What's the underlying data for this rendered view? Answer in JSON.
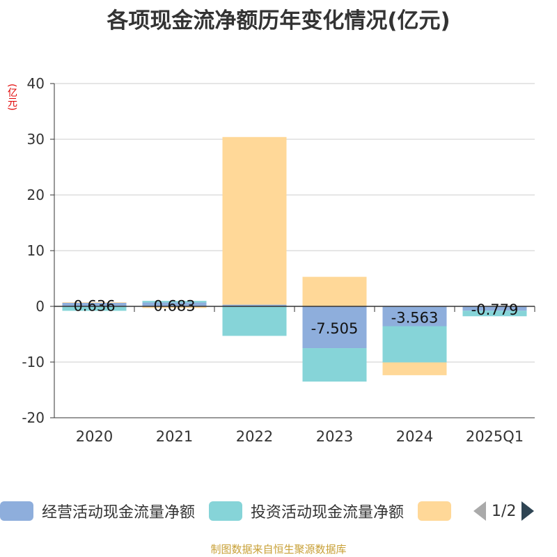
{
  "title": "各项现金流净额历年变化情况(亿元)",
  "unit": "(亿元)",
  "colors": {
    "operating": "#8eaedc",
    "investing": "#86d4d8",
    "financing": "#ffd898",
    "grid": "#cccccc",
    "axis": "#333333",
    "text": "#333333",
    "unit": "#e00000",
    "source": "#c8a036"
  },
  "legend": {
    "items": [
      {
        "label": "经营活动现金流量净额",
        "color": "#8eaedc"
      },
      {
        "label": "投资活动现金流量净额",
        "color": "#86d4d8"
      },
      {
        "label": "",
        "color": "#ffd898"
      }
    ],
    "page": "1/2",
    "prev_icon": "triangle-left-icon",
    "next_icon": "triangle-right-icon"
  },
  "source": "制图数据来自恒生聚源数据库",
  "chart_data": {
    "type": "bar",
    "stacked": true,
    "categories": [
      "2020",
      "2021",
      "2022",
      "2023",
      "2024",
      "2025Q1"
    ],
    "ylim": [
      -20,
      40
    ],
    "yticks": [
      -20,
      -10,
      0,
      10,
      20,
      30,
      40
    ],
    "ylabel": "(亿元)",
    "grid": true,
    "series": [
      {
        "name": "经营活动现金流量净额",
        "values": [
          0.636,
          0.683,
          0.3,
          -7.505,
          -3.563,
          -0.779
        ],
        "labels": [
          "0.636",
          "0.683",
          "",
          "-7.505",
          "-3.563",
          "-0.779"
        ]
      },
      {
        "name": "投资活动现金流量净额",
        "values": [
          -0.8,
          0.3,
          -5.3,
          -6.0,
          -6.5,
          -1.0
        ]
      },
      {
        "name": "",
        "values": [
          0.1,
          -0.3,
          30.1,
          5.3,
          -2.3,
          0
        ]
      }
    ]
  }
}
